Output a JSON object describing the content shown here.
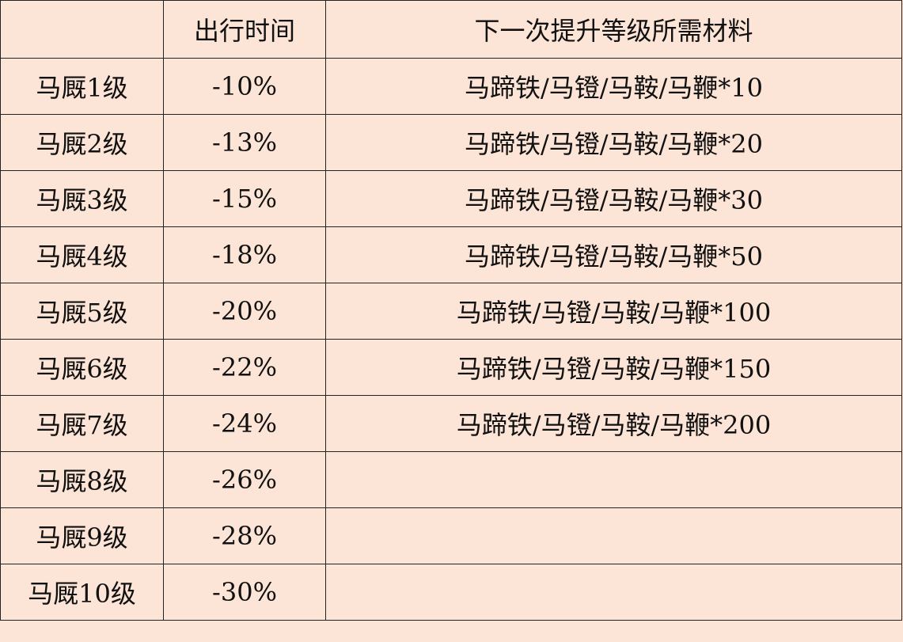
{
  "header": [
    "",
    "出行时间",
    "下一次提升等级所需材料"
  ],
  "rows": [
    {
      "level": "马厩1级",
      "time": "-10%",
      "materials": "马蹄铁/马镫/马鞍/马鞭*10"
    },
    {
      "level": "马厩2级",
      "time": "-13%",
      "materials": "马蹄铁/马镫/马鞍/马鞭*20"
    },
    {
      "level": "马厩3级",
      "time": "-15%",
      "materials": "马蹄铁/马镫/马鞍/马鞭*30"
    },
    {
      "level": "马厩4级",
      "time": "-18%",
      "materials": "马蹄铁/马镫/马鞍/马鞭*50"
    },
    {
      "level": "马厩5级",
      "time": "-20%",
      "materials": "马蹄铁/马镫/马鞍/马鞭*100"
    },
    {
      "level": "马厩6级",
      "time": "-22%",
      "materials": "马蹄铁/马镫/马鞍/马鞭*150"
    },
    {
      "level": "马厩7级",
      "time": "-24%",
      "materials": "马蹄铁/马镫/马鞍/马鞭*200"
    },
    {
      "level": "马厩8级",
      "time": "-26%",
      "materials": ""
    },
    {
      "level": "马厩9级",
      "time": "-28%",
      "materials": ""
    },
    {
      "level": "马厩10级",
      "time": "-30%",
      "materials": ""
    }
  ],
  "colors": {
    "background": "#fce4d6",
    "border": "#222222"
  }
}
